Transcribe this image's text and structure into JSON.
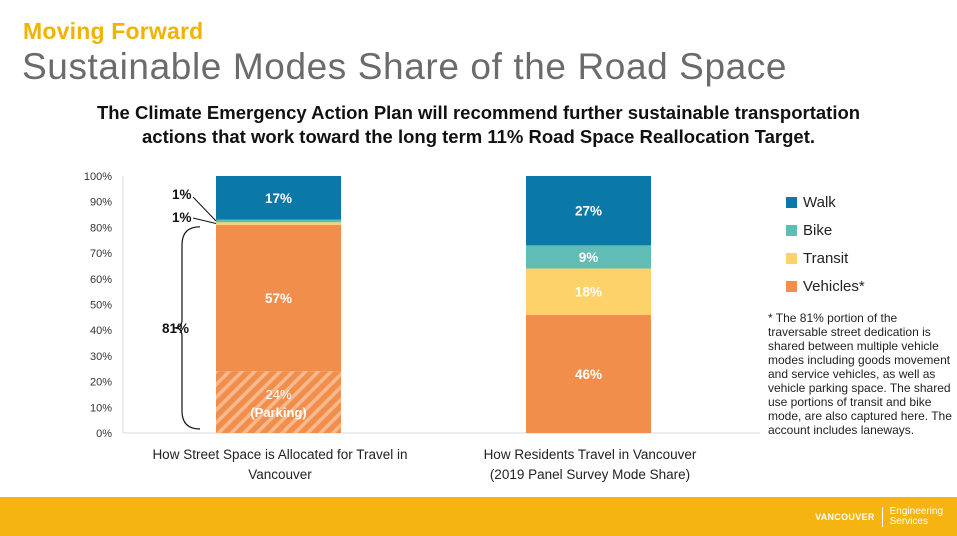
{
  "header": {
    "kicker": "Moving Forward",
    "title": "Sustainable Modes Share of the Road Space",
    "subtitle_line1": "The Climate Emergency Action Plan will recommend further sustainable transportation",
    "subtitle_line2": "actions that work toward the long term 11% Road Space Reallocation Target."
  },
  "chart_data": {
    "type": "bar",
    "stacked": true,
    "ylim": [
      0,
      100
    ],
    "yticks": [
      "0%",
      "10%",
      "20%",
      "30%",
      "40%",
      "50%",
      "60%",
      "70%",
      "80%",
      "90%",
      "100%"
    ],
    "categories": [
      "How Street Space is Allocated for Travel in Vancouver",
      "How Residents Travel in Vancouver (2019 Panel Survey Mode Share)"
    ],
    "category_lines": [
      [
        "How Street Space is Allocated for Travel in",
        "Vancouver"
      ],
      [
        "How Residents Travel in Vancouver",
        "(2019 Panel Survey Mode Share)"
      ]
    ],
    "bars": [
      {
        "segments": [
          {
            "key": "parking",
            "value": 24,
            "label": "24%",
            "sublabel": "(Parking)",
            "color": "#f28e4b",
            "hatched": true
          },
          {
            "key": "vehicles",
            "value": 57,
            "label": "57%",
            "color": "#f28e4b"
          },
          {
            "key": "transit",
            "value": 1,
            "label": "1%",
            "color": "#fdd26a"
          },
          {
            "key": "bike",
            "value": 1,
            "label": "1%",
            "color": "#5fbdb6"
          },
          {
            "key": "walk",
            "value": 17,
            "label": "17%",
            "color": "#0a79a8"
          }
        ],
        "bracket_label": "81%"
      },
      {
        "segments": [
          {
            "key": "vehicles",
            "value": 46,
            "label": "46%",
            "color": "#f28e4b"
          },
          {
            "key": "transit",
            "value": 18,
            "label": "18%",
            "color": "#fdd26a"
          },
          {
            "key": "bike",
            "value": 9,
            "label": "9%",
            "color": "#5fbdb6"
          },
          {
            "key": "walk",
            "value": 27,
            "label": "27%",
            "color": "#0a79a8"
          }
        ]
      }
    ],
    "legend": [
      {
        "name": "Walk",
        "color": "#0a79a8"
      },
      {
        "name": "Bike",
        "color": "#5fbdb6"
      },
      {
        "name": "Transit",
        "color": "#fdd26a"
      },
      {
        "name": "Vehicles*",
        "color": "#f28e4b"
      }
    ],
    "legend_position": "right",
    "grid": false
  },
  "footnote": "* The 81% portion of the traversable street dedication is shared between multiple vehicle modes including goods movement and service vehicles, as well as vehicle parking space. The shared use portions of transit and bike mode, are also captured here.  The account includes laneways.",
  "footer": {
    "logo_text": "VANCOUVER",
    "department_line1": "Engineering",
    "department_line2": "Services"
  },
  "colors": {
    "accent": "#f2b200",
    "footer": "#f5b40f",
    "title": "#6b6b6b"
  }
}
